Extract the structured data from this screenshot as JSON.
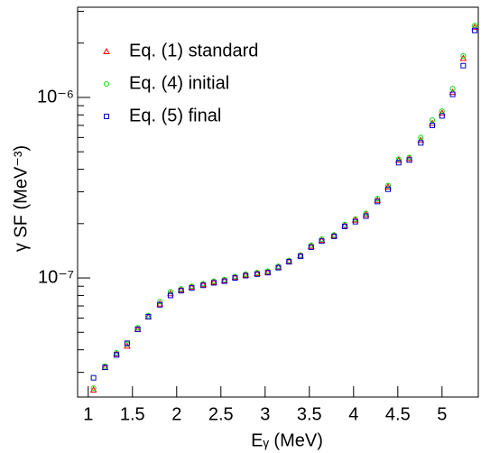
{
  "chart_data": {
    "type": "scatter",
    "xlabel": "Eᵧ (MeV)",
    "ylabel": "γ SF (MeV⁻³)",
    "xlim": [
      0.88,
      5.41
    ],
    "xticks": [
      1,
      1.5,
      2,
      2.5,
      3,
      3.5,
      4,
      4.5,
      5
    ],
    "ylim": [
      2.19e-08,
      3.16e-06
    ],
    "log_y": true,
    "yticks": [
      {
        "value": 1e-07,
        "label": "10⁻⁷"
      },
      {
        "value": 1e-06,
        "label": "10⁻⁶"
      }
    ],
    "yminorticks": [
      3e-08,
      4e-08,
      5e-08,
      6e-08,
      7e-08,
      8e-08,
      9e-08,
      2e-07,
      3e-07,
      4e-07,
      5e-07,
      6e-07,
      7e-07,
      8e-07,
      9e-07,
      2e-06,
      3e-06
    ],
    "legend": "upper left",
    "x": [
      1.06,
      1.19,
      1.32,
      1.44,
      1.56,
      1.68,
      1.81,
      1.93,
      2.05,
      2.17,
      2.3,
      2.42,
      2.54,
      2.66,
      2.78,
      2.91,
      3.03,
      3.15,
      3.27,
      3.4,
      3.52,
      3.64,
      3.78,
      3.9,
      4.02,
      4.14,
      4.27,
      4.39,
      4.51,
      4.63,
      4.76,
      4.89,
      5.0,
      5.12,
      5.24,
      5.37
    ],
    "series": [
      {
        "name": "Eq. (1) standard",
        "color": "#ff0000",
        "marker": "triangle",
        "values": [
          2.4e-08,
          3.2e-08,
          3.8e-08,
          4.2e-08,
          5.2e-08,
          6.1e-08,
          7.2e-08,
          8.2e-08,
          8.6e-08,
          8.9e-08,
          9.2e-08,
          9.5e-08,
          9.7e-08,
          1.01e-07,
          1.04e-07,
          1.06e-07,
          1.08e-07,
          1.15e-07,
          1.24e-07,
          1.33e-07,
          1.5e-07,
          1.62e-07,
          1.72e-07,
          1.95e-07,
          2.1e-07,
          2.25e-07,
          2.7e-07,
          3.2e-07,
          4.5e-07,
          4.6e-07,
          5.8e-07,
          7.2e-07,
          8.2e-07,
          1.07e-06,
          1.65e-06,
          2.45e-06
        ]
      },
      {
        "name": "Eq. (4) initial",
        "color": "#00dd00",
        "marker": "circle",
        "values": [
          2.45e-08,
          3.25e-08,
          3.85e-08,
          4.3e-08,
          5.3e-08,
          6.2e-08,
          7.4e-08,
          8.4e-08,
          8.7e-08,
          9e-08,
          9.3e-08,
          9.6e-08,
          9.8e-08,
          1.02e-07,
          1.05e-07,
          1.07e-07,
          1.09e-07,
          1.16e-07,
          1.25e-07,
          1.34e-07,
          1.52e-07,
          1.64e-07,
          1.73e-07,
          1.98e-07,
          2.12e-07,
          2.28e-07,
          2.75e-07,
          3.25e-07,
          4.55e-07,
          4.65e-07,
          6e-07,
          7.5e-07,
          8.4e-07,
          1.12e-06,
          1.7e-06,
          2.5e-06
        ]
      },
      {
        "name": "Eq. (5) final",
        "color": "#0000cc",
        "marker": "square",
        "values": [
          2.8e-08,
          3.2e-08,
          3.75e-08,
          4.35e-08,
          5.2e-08,
          6.1e-08,
          7.1e-08,
          8e-08,
          8.5e-08,
          8.8e-08,
          9.1e-08,
          9.4e-08,
          9.6e-08,
          1e-07,
          1.03e-07,
          1.05e-07,
          1.07e-07,
          1.14e-07,
          1.23e-07,
          1.32e-07,
          1.48e-07,
          1.6e-07,
          1.7e-07,
          1.93e-07,
          2.05e-07,
          2.2e-07,
          2.65e-07,
          3.1e-07,
          4.35e-07,
          4.5e-07,
          5.6e-07,
          7e-07,
          7.9e-07,
          1.04e-06,
          1.5e-06,
          2.35e-06
        ]
      }
    ]
  }
}
